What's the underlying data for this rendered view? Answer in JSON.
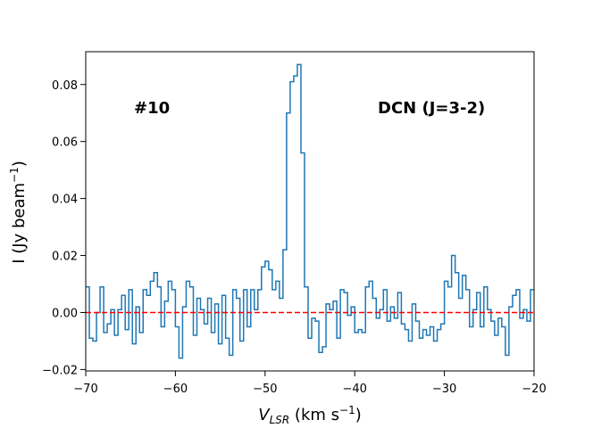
{
  "chart_data": {
    "type": "step",
    "xlabel": [
      "V",
      "LSR",
      " (km s",
      "−1",
      ")"
    ],
    "ylabel": [
      "I (Jy beam",
      "−1",
      ")"
    ],
    "annotations": [
      "#10",
      "DCN (J=3-2)"
    ],
    "x": [
      -69.8,
      -69.4,
      -69.0,
      -68.6,
      -68.2,
      -67.8,
      -67.4,
      -67.0,
      -66.6,
      -66.2,
      -65.8,
      -65.4,
      -65.0,
      -64.6,
      -64.2,
      -63.8,
      -63.4,
      -63.0,
      -62.6,
      -62.2,
      -61.8,
      -61.4,
      -61.0,
      -60.6,
      -60.2,
      -59.8,
      -59.4,
      -59.0,
      -58.6,
      -58.2,
      -57.8,
      -57.4,
      -57.0,
      -56.6,
      -56.2,
      -55.8,
      -55.4,
      -55.0,
      -54.6,
      -54.2,
      -53.8,
      -53.4,
      -53.0,
      -52.6,
      -52.2,
      -51.8,
      -51.4,
      -51.0,
      -50.6,
      -50.2,
      -49.8,
      -49.4,
      -49.0,
      -48.6,
      -48.2,
      -47.8,
      -47.4,
      -47.0,
      -46.6,
      -46.2,
      -45.8,
      -45.4,
      -45.0,
      -44.6,
      -44.2,
      -43.8,
      -43.4,
      -43.0,
      -42.6,
      -42.2,
      -41.8,
      -41.4,
      -41.0,
      -40.6,
      -40.2,
      -39.8,
      -39.4,
      -39.0,
      -38.6,
      -38.2,
      -37.8,
      -37.4,
      -37.0,
      -36.6,
      -36.2,
      -35.8,
      -35.4,
      -35.0,
      -34.6,
      -34.2,
      -33.8,
      -33.4,
      -33.0,
      -32.6,
      -32.2,
      -31.8,
      -31.4,
      -31.0,
      -30.6,
      -30.2,
      -29.8,
      -29.4,
      -29.0,
      -28.6,
      -28.2,
      -27.8,
      -27.4,
      -27.0,
      -26.6,
      -26.2,
      -25.8,
      -25.4,
      -25.0,
      -24.6,
      -24.2,
      -23.8,
      -23.4,
      -23.0,
      -22.6,
      -22.2,
      -21.8,
      -21.4,
      -21.0,
      -20.6,
      -20.2
    ],
    "series": [
      {
        "color": "#1f77b4",
        "values": [
          0.009,
          -0.009,
          -0.01,
          0.0,
          0.009,
          -0.007,
          -0.004,
          0.001,
          -0.008,
          0.001,
          0.006,
          -0.006,
          0.008,
          -0.011,
          0.002,
          -0.007,
          0.008,
          0.006,
          0.011,
          0.014,
          0.009,
          -0.005,
          0.004,
          0.011,
          0.008,
          -0.005,
          -0.016,
          0.002,
          0.011,
          0.009,
          -0.008,
          0.005,
          0.001,
          -0.004,
          0.005,
          -0.007,
          0.003,
          -0.011,
          0.006,
          -0.009,
          -0.015,
          0.008,
          0.005,
          -0.01,
          0.008,
          -0.005,
          0.008,
          0.001,
          0.008,
          0.016,
          0.018,
          0.015,
          0.008,
          0.011,
          0.005,
          0.022,
          0.07,
          0.081,
          0.083,
          0.087,
          0.056,
          0.009,
          -0.009,
          -0.002,
          -0.003,
          -0.014,
          -0.012,
          0.003,
          0.001,
          0.004,
          -0.009,
          0.008,
          0.007,
          -0.001,
          0.002,
          -0.007,
          -0.006,
          -0.007,
          0.009,
          0.011,
          0.005,
          -0.002,
          0.001,
          0.008,
          -0.003,
          0.002,
          -0.002,
          0.007,
          -0.004,
          -0.006,
          -0.01,
          0.003,
          -0.003,
          -0.009,
          -0.006,
          -0.008,
          -0.005,
          -0.01,
          -0.006,
          -0.004,
          0.011,
          0.009,
          0.02,
          0.014,
          0.005,
          0.013,
          0.008,
          -0.005,
          0.001,
          0.007,
          -0.005,
          0.009,
          0.001,
          -0.003,
          -0.008,
          -0.002,
          -0.005,
          -0.015,
          0.002,
          0.006,
          0.008,
          -0.002,
          0.001,
          -0.003,
          0.008
        ]
      }
    ],
    "reference_line": {
      "value": 0,
      "color": "#ff0000"
    },
    "xlim": [
      -70,
      -20
    ],
    "xticks": [
      {
        "value": -70,
        "label": "−70"
      },
      {
        "value": -60,
        "label": "−60"
      },
      {
        "value": -50,
        "label": "−50"
      },
      {
        "value": -40,
        "label": "−40"
      },
      {
        "value": -30,
        "label": "−30"
      },
      {
        "value": -20,
        "label": "−20"
      }
    ],
    "ylim": [
      -0.0205,
      0.0915
    ],
    "yticks": [
      {
        "value": -0.02,
        "label": "−0.02"
      },
      {
        "value": 0,
        "label": "0.00"
      },
      0.02,
      0.04,
      0.06,
      0.08
    ]
  }
}
